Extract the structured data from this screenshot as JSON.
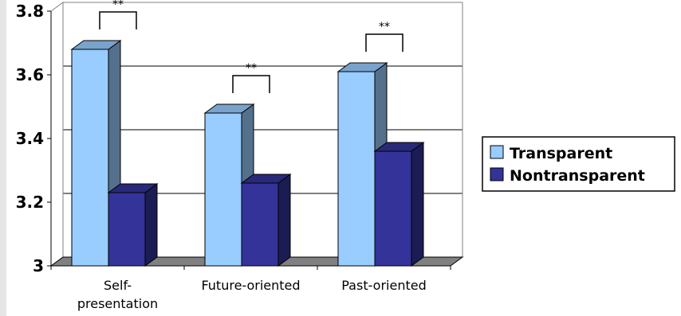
{
  "chart_data": {
    "type": "bar",
    "categories": [
      "Self-presentation",
      "Future-oriented",
      "Past-oriented"
    ],
    "category_lines": [
      [
        "Self-",
        "presentation"
      ],
      [
        "Future-oriented"
      ],
      [
        "Past-oriented"
      ]
    ],
    "series": [
      {
        "name": "Transparent",
        "values": [
          3.68,
          3.48,
          3.61
        ],
        "color": "#99ccff"
      },
      {
        "name": "Nontransparent",
        "values": [
          3.23,
          3.26,
          3.36
        ],
        "color": "#333399"
      }
    ],
    "ylim": [
      3,
      3.8
    ],
    "yticks": [
      "3",
      "3.2",
      "3.4",
      "3.6",
      "3.8"
    ],
    "significance": [
      "**",
      "**",
      "**"
    ],
    "grid": true,
    "legend_position": "right",
    "three_d": true
  }
}
